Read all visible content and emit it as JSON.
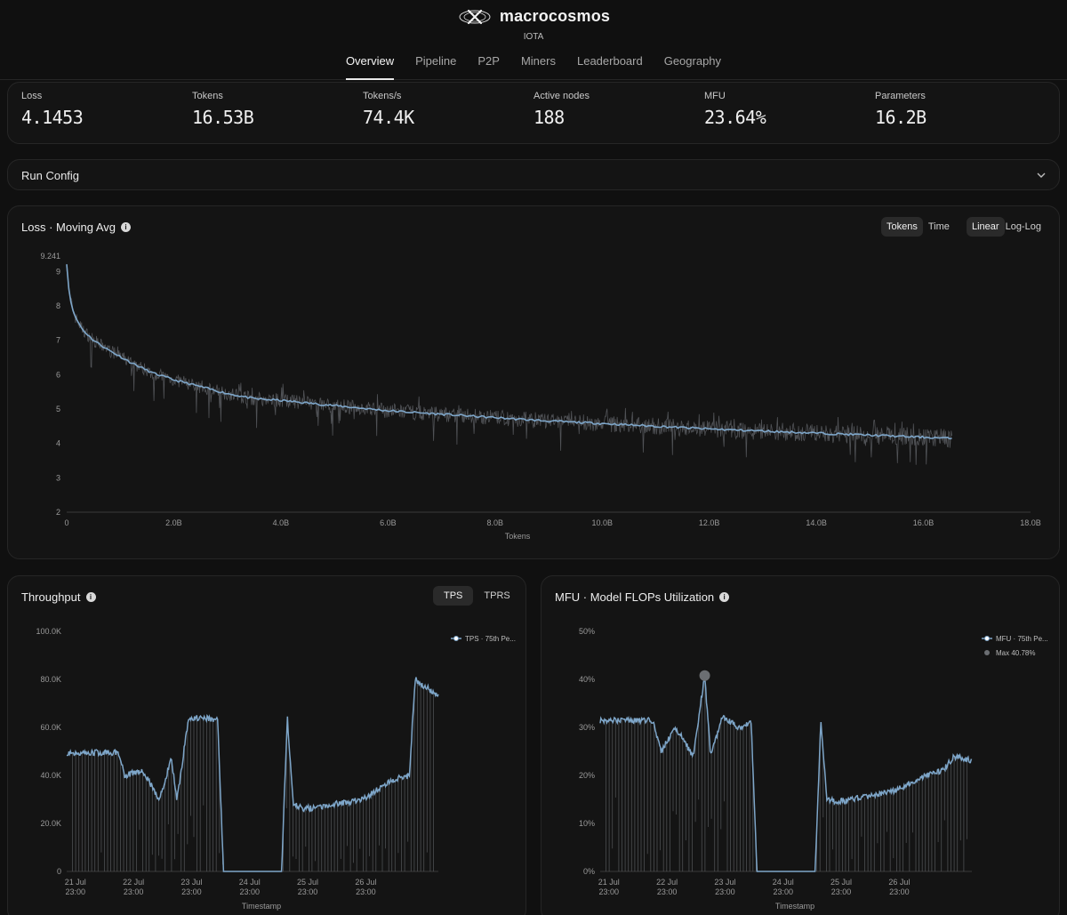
{
  "brand": {
    "name": "macrocosmos",
    "subtitle": "IOTA"
  },
  "nav": {
    "items": [
      {
        "label": "Overview",
        "active": true
      },
      {
        "label": "Pipeline",
        "active": false
      },
      {
        "label": "P2P",
        "active": false
      },
      {
        "label": "Miners",
        "active": false
      },
      {
        "label": "Leaderboard",
        "active": false
      },
      {
        "label": "Geography",
        "active": false
      }
    ]
  },
  "stats": [
    {
      "label": "Loss",
      "value": "4.1453"
    },
    {
      "label": "Tokens",
      "value": "16.53B"
    },
    {
      "label": "Tokens/s",
      "value": "74.4K"
    },
    {
      "label": "Active nodes",
      "value": "188"
    },
    {
      "label": "MFU",
      "value": "23.64%"
    },
    {
      "label": "Parameters",
      "value": "16.2B"
    }
  ],
  "run_config": {
    "label": "Run Config",
    "icon": "chevron-down-icon"
  },
  "loss_card": {
    "title": "Loss · Moving Avg",
    "x_toggle": [
      {
        "label": "Tokens",
        "active": true
      },
      {
        "label": "Time",
        "active": false
      }
    ],
    "scale_toggle": [
      {
        "label": "Linear",
        "active": true
      },
      {
        "label": "Log-Log",
        "active": false
      }
    ]
  },
  "throughput_card": {
    "title": "Throughput",
    "toggle": [
      {
        "label": "TPS",
        "active": true
      },
      {
        "label": "TPRS",
        "active": false
      }
    ]
  },
  "mfu_card": {
    "title": "MFU · Model FLOPs Utilization"
  },
  "colors": {
    "accent": "#7ea6c9",
    "raw": "#5a5d61",
    "background": "#101010",
    "card": "#141414"
  },
  "chart_data": [
    {
      "type": "line",
      "title": "Loss · Moving Avg",
      "xlabel": "Tokens",
      "ylabel": "",
      "x_ticks": [
        "0",
        "2.0B",
        "4.0B",
        "6.0B",
        "8.0B",
        "10.0B",
        "12.0B",
        "14.0B",
        "16.0B",
        "18.0B"
      ],
      "y_ticks": [
        "2",
        "3",
        "4",
        "5",
        "6",
        "7",
        "8",
        "9"
      ],
      "y_max_label": "9.241",
      "xlim": [
        0,
        18
      ],
      "ylim": [
        2,
        9.241
      ],
      "x_unit": "billion tokens",
      "series": [
        {
          "x": [
            0,
            0.05,
            0.15,
            0.3,
            0.5,
            0.8,
            1.2,
            1.6,
            2.0,
            2.5,
            3.0,
            3.5,
            4.0,
            5.0,
            6.0,
            7.0,
            8.0,
            9.0,
            10.0,
            11.0,
            12.0,
            13.0,
            14.0,
            15.0,
            16.0,
            16.53
          ],
          "y": [
            9.241,
            8.3,
            7.7,
            7.3,
            7.0,
            6.7,
            6.35,
            6.05,
            5.85,
            5.65,
            5.45,
            5.3,
            5.25,
            5.1,
            4.95,
            4.85,
            4.75,
            4.65,
            4.58,
            4.5,
            4.42,
            4.36,
            4.3,
            4.24,
            4.18,
            4.1453
          ]
        }
      ]
    },
    {
      "type": "line",
      "title": "Throughput",
      "xlabel": "Timestamp",
      "x_ticks": [
        "21 Jul 23:00",
        "22 Jul 23:00",
        "23 Jul 23:00",
        "24 Jul 23:00",
        "25 Jul 23:00",
        "26 Jul 23:00"
      ],
      "y_ticks": [
        "0",
        "20.0K",
        "40.0K",
        "60.0K",
        "80.0K",
        "100.0K"
      ],
      "ylim": [
        0,
        100000
      ],
      "x_unit": "hours since 21 Jul 23:00",
      "legend": "top-right",
      "series": [
        {
          "name": "TPS · 75th Pe...",
          "x": [
            -0.1,
            0.5,
            0.8,
            0.9,
            1.2,
            1.5,
            1.7,
            1.8,
            2.0,
            2.3,
            2.5,
            2.6,
            3.0,
            3.6,
            3.7,
            3.8,
            4.0,
            4.5,
            5.0,
            5.5,
            5.8,
            5.9,
            6.3
          ],
          "y": [
            49500,
            49500,
            49500,
            40000,
            42000,
            30000,
            47000,
            30000,
            64000,
            64000,
            63000,
            0,
            0,
            0,
            64000,
            28000,
            26000,
            28000,
            30000,
            38000,
            40000,
            80000,
            73000
          ]
        }
      ]
    },
    {
      "type": "line",
      "title": "MFU · Model FLOPs Utilization",
      "xlabel": "Timestamp",
      "x_ticks": [
        "21 Jul 23:00",
        "22 Jul 23:00",
        "23 Jul 23:00",
        "24 Jul 23:00",
        "25 Jul 23:00",
        "26 Jul 23:00"
      ],
      "y_ticks": [
        "0%",
        "10%",
        "20%",
        "30%",
        "40%",
        "50%"
      ],
      "ylim": [
        0,
        50
      ],
      "x_unit": "hours since 21 Jul 23:00",
      "legend": "top-right",
      "series": [
        {
          "name": "MFU · 75th Pe...",
          "x": [
            -0.1,
            0.5,
            0.8,
            0.95,
            1.2,
            1.5,
            1.7,
            1.8,
            2.0,
            2.3,
            2.5,
            2.6,
            3.0,
            3.6,
            3.7,
            3.8,
            4.0,
            4.5,
            5.0,
            5.5,
            5.8,
            6.0,
            6.3
          ],
          "y": [
            31.5,
            31.5,
            31.5,
            25,
            30,
            24,
            40.78,
            24,
            32,
            30,
            31,
            0,
            0,
            0,
            31.5,
            15,
            14.5,
            15.5,
            17,
            20,
            21,
            24,
            23
          ]
        },
        {
          "name": "Max 40.78%",
          "x": [
            1.7
          ],
          "y": [
            40.78
          ]
        }
      ]
    }
  ]
}
